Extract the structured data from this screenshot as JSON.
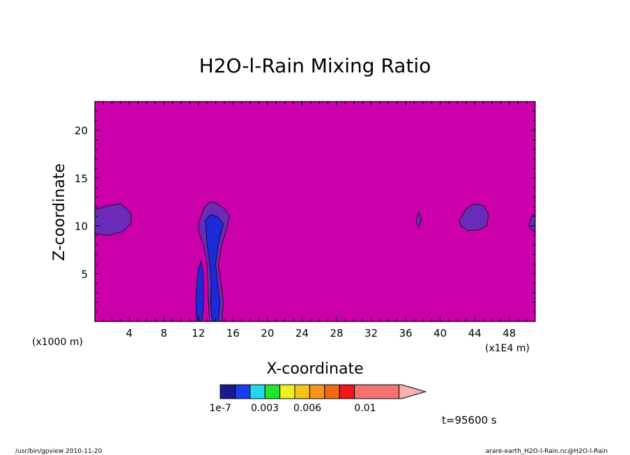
{
  "chart_data": {
    "type": "heatmap",
    "title": "H2O-l-Rain Mixing Ratio",
    "xlabel": "X-coordinate",
    "ylabel": "Z-coordinate",
    "x_scale_note": "(x1E4 m)",
    "y_scale_note": "(x1000 m)",
    "xlim": [
      0,
      51
    ],
    "ylim": [
      0,
      23
    ],
    "x_ticks": [
      4,
      8,
      12,
      16,
      20,
      24,
      28,
      32,
      36,
      40,
      44,
      48
    ],
    "y_ticks": [
      5,
      10,
      15,
      20
    ],
    "colorbar": {
      "colors": [
        "#1b1b8f",
        "#1a3cf0",
        "#22d8f0",
        "#22e62a",
        "#f0f020",
        "#f5c418",
        "#f5951a",
        "#f06a14",
        "#f01818",
        "#f47272",
        "#f8b0b0"
      ],
      "labels": [
        "1e-7",
        "0.003",
        "0.006",
        "0.01"
      ]
    },
    "background_color": "#cc00aa",
    "regions": [
      {
        "level": "low",
        "color": "#6a2cb8",
        "points": [
          [
            0,
            9.2
          ],
          [
            1.5,
            9.0
          ],
          [
            3.2,
            9.4
          ],
          [
            4.2,
            10.2
          ],
          [
            4.2,
            11.3
          ],
          [
            3.0,
            12.3
          ],
          [
            1.5,
            12.1
          ],
          [
            0,
            11.7
          ]
        ]
      },
      {
        "level": "low",
        "color": "#6a2cb8",
        "points": [
          [
            12.0,
            10.2
          ],
          [
            12.6,
            11.8
          ],
          [
            13.3,
            12.5
          ],
          [
            14.0,
            12.4
          ],
          [
            15.0,
            11.8
          ],
          [
            15.6,
            11.0
          ],
          [
            15.3,
            9.8
          ],
          [
            14.7,
            8.0
          ],
          [
            14.3,
            6.0
          ],
          [
            14.6,
            4.0
          ],
          [
            14.9,
            2.0
          ],
          [
            14.7,
            0
          ],
          [
            13.3,
            0
          ],
          [
            13.1,
            3.0
          ],
          [
            13.0,
            6.0
          ],
          [
            12.6,
            8.0
          ],
          [
            12.1,
            9.2
          ]
        ]
      },
      {
        "level": "mid",
        "color": "#1c2ad8",
        "points": [
          [
            12.8,
            10.6
          ],
          [
            13.4,
            11.2
          ],
          [
            14.3,
            10.9
          ],
          [
            14.9,
            10.2
          ],
          [
            14.6,
            9.2
          ],
          [
            14.3,
            8.0
          ],
          [
            14.0,
            6.0
          ],
          [
            14.2,
            4.0
          ],
          [
            14.5,
            2.0
          ],
          [
            14.3,
            0
          ],
          [
            13.6,
            0
          ],
          [
            13.4,
            2.0
          ],
          [
            13.5,
            4.0
          ],
          [
            13.3,
            6.0
          ],
          [
            13.0,
            8.0
          ]
        ]
      },
      {
        "level": "mid",
        "color": "#1c2ad8",
        "points": [
          [
            11.8,
            0
          ],
          [
            11.7,
            2.0
          ],
          [
            11.8,
            4.0
          ],
          [
            12.0,
            5.6
          ],
          [
            12.3,
            6.3
          ],
          [
            12.5,
            5.5
          ],
          [
            12.6,
            3.5
          ],
          [
            12.6,
            1.5
          ],
          [
            12.4,
            0
          ]
        ]
      },
      {
        "level": "low",
        "color": "#6a2cb8",
        "points": [
          [
            37.2,
            10.5
          ],
          [
            37.5,
            11.5
          ],
          [
            37.8,
            10.7
          ],
          [
            37.5,
            9.8
          ]
        ]
      },
      {
        "level": "low",
        "color": "#6a2cb8",
        "points": [
          [
            42.2,
            10.5
          ],
          [
            43.0,
            11.8
          ],
          [
            44.0,
            12.3
          ],
          [
            45.0,
            12.1
          ],
          [
            45.6,
            11.2
          ],
          [
            45.4,
            10.0
          ],
          [
            44.5,
            9.6
          ],
          [
            43.2,
            9.5
          ],
          [
            42.4,
            10.0
          ]
        ]
      },
      {
        "level": "low",
        "color": "#6a2cb8",
        "points": [
          [
            51,
            9.3
          ],
          [
            50.2,
            10.0
          ],
          [
            50.6,
            11.0
          ],
          [
            51,
            11.2
          ]
        ]
      }
    ]
  },
  "timestamp_label": "t=95600 s",
  "footer_left": "/usr/bin/gpview   2010-11-20",
  "footer_right": "arare-earth_H2O-l-Rain.nc@H2O-l-Rain"
}
